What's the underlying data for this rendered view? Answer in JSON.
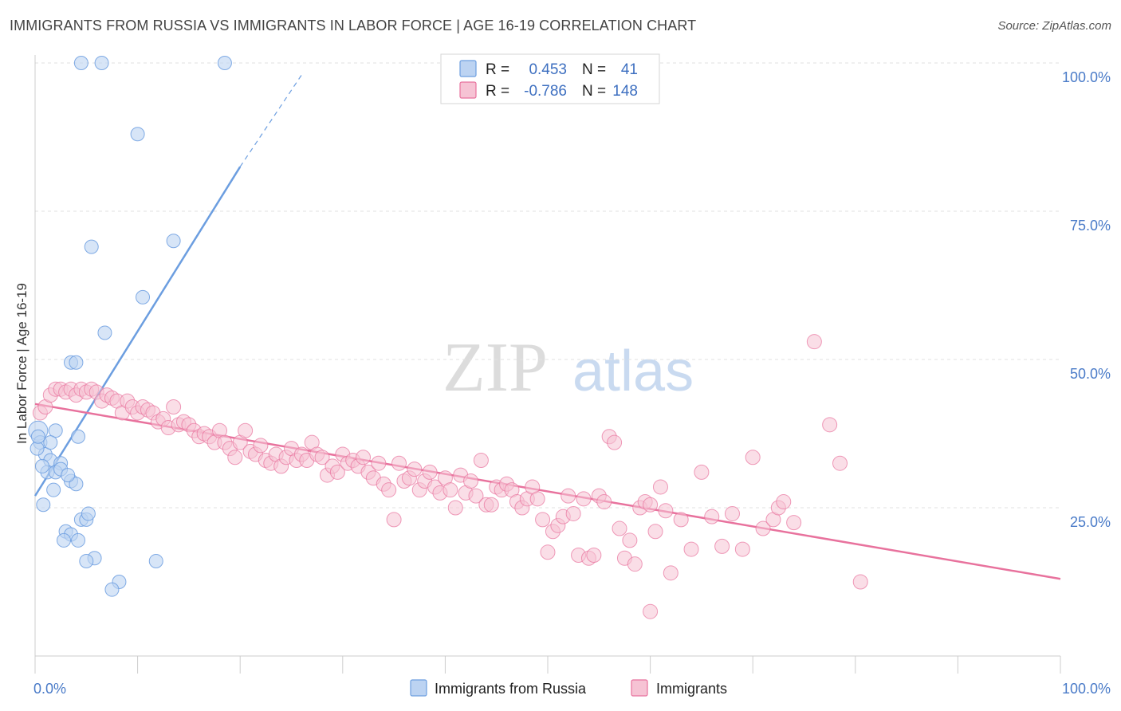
{
  "title": "IMMIGRANTS FROM RUSSIA VS IMMIGRANTS IN LABOR FORCE | AGE 16-19 CORRELATION CHART",
  "source": "Source: ZipAtlas.com",
  "watermark": {
    "zip": "ZIP",
    "atlas": "atlas"
  },
  "colors": {
    "blue": "#6c9ee0",
    "blue_fill": "#bcd3f2",
    "pink": "#e8729d",
    "pink_fill": "#f6c3d4",
    "tick": "#4a7bc8"
  },
  "legend": {
    "r_label": "R =",
    "n_label": "N =",
    "rows": [
      {
        "r": "0.453",
        "n": "41"
      },
      {
        "r": "-0.786",
        "n": "148"
      }
    ]
  },
  "chart_data": {
    "type": "scatter",
    "xlabel": "",
    "ylabel": "In Labor Force | Age 16-19",
    "xlim": [
      0,
      100
    ],
    "ylim": [
      0,
      100
    ],
    "x_tick_labels": [
      "0.0%",
      "100.0%"
    ],
    "y_ticks": [
      25,
      50,
      75,
      100
    ],
    "y_tick_labels": [
      "25.0%",
      "50.0%",
      "75.0%",
      "100.0%"
    ],
    "grid": true,
    "legend_position": "top-center",
    "series": [
      {
        "name": "Immigrants from Russia",
        "trend": {
          "x0": 0,
          "y0": 27,
          "x1": 20,
          "y1": 82.5,
          "x_dash_end": 26,
          "y_dash_end": 98
        },
        "points": [
          [
            4.5,
            100
          ],
          [
            6.5,
            100
          ],
          [
            18.5,
            100
          ],
          [
            10,
            88
          ],
          [
            5.5,
            69
          ],
          [
            13.5,
            70
          ],
          [
            10.5,
            60.5
          ],
          [
            6.8,
            54.5
          ],
          [
            3.5,
            49.5
          ],
          [
            4,
            49.5
          ],
          [
            0.3,
            38
          ],
          [
            0.5,
            36
          ],
          [
            1,
            34
          ],
          [
            2,
            38
          ],
          [
            1.5,
            33
          ],
          [
            2.5,
            32.5
          ],
          [
            1.2,
            31
          ],
          [
            2,
            31
          ],
          [
            2.5,
            31.5
          ],
          [
            3.5,
            29.5
          ],
          [
            4,
            29
          ],
          [
            1.8,
            28
          ],
          [
            4.2,
            37
          ],
          [
            0.8,
            25.5
          ],
          [
            4.5,
            23
          ],
          [
            5,
            23
          ],
          [
            5.2,
            24
          ],
          [
            3,
            21
          ],
          [
            3.5,
            20.5
          ],
          [
            4.2,
            19.5
          ],
          [
            2.8,
            19.5
          ],
          [
            5.8,
            16.5
          ],
          [
            5,
            16
          ],
          [
            11.8,
            16
          ],
          [
            8.2,
            12.5
          ],
          [
            7.5,
            11.2
          ],
          [
            0.2,
            35
          ],
          [
            0.3,
            37
          ],
          [
            1.5,
            36
          ],
          [
            3.2,
            30.5
          ],
          [
            0.7,
            32
          ]
        ]
      },
      {
        "name": "Immigrants",
        "trend": {
          "x0": 0,
          "y0": 42.5,
          "x1": 100,
          "y1": 13
        },
        "points": [
          [
            0.5,
            41
          ],
          [
            1,
            42
          ],
          [
            1.5,
            44
          ],
          [
            2,
            45
          ],
          [
            2.5,
            45
          ],
          [
            3,
            44.5
          ],
          [
            3.5,
            45
          ],
          [
            4,
            44
          ],
          [
            4.5,
            45
          ],
          [
            5,
            44.5
          ],
          [
            5.5,
            45
          ],
          [
            6,
            44.5
          ],
          [
            6.5,
            43
          ],
          [
            7,
            44
          ],
          [
            7.5,
            43.5
          ],
          [
            8,
            43
          ],
          [
            8.5,
            41
          ],
          [
            9,
            43
          ],
          [
            9.5,
            42
          ],
          [
            10,
            41
          ],
          [
            10.5,
            42
          ],
          [
            11,
            41.5
          ],
          [
            11.5,
            41
          ],
          [
            12,
            39.5
          ],
          [
            12.5,
            40
          ],
          [
            13,
            38.5
          ],
          [
            13.5,
            42
          ],
          [
            14,
            39
          ],
          [
            14.5,
            39.5
          ],
          [
            15,
            39
          ],
          [
            15.5,
            38
          ],
          [
            16,
            37
          ],
          [
            16.5,
            37.5
          ],
          [
            17,
            37
          ],
          [
            17.5,
            36
          ],
          [
            18,
            38
          ],
          [
            18.5,
            36
          ],
          [
            19,
            35
          ],
          [
            19.5,
            33.5
          ],
          [
            20,
            36
          ],
          [
            20.5,
            38
          ],
          [
            21,
            34.5
          ],
          [
            21.5,
            34
          ],
          [
            22,
            35.5
          ],
          [
            22.5,
            33
          ],
          [
            23,
            32.5
          ],
          [
            23.5,
            34
          ],
          [
            24,
            32
          ],
          [
            24.5,
            33.5
          ],
          [
            25,
            35
          ],
          [
            25.5,
            33
          ],
          [
            26,
            34
          ],
          [
            26.5,
            33
          ],
          [
            27,
            36
          ],
          [
            27.5,
            34
          ],
          [
            28,
            33.5
          ],
          [
            28.5,
            30.5
          ],
          [
            29,
            32
          ],
          [
            29.5,
            31
          ],
          [
            30,
            34
          ],
          [
            30.5,
            32.5
          ],
          [
            31,
            33
          ],
          [
            31.5,
            32
          ],
          [
            32,
            33.5
          ],
          [
            32.5,
            31
          ],
          [
            33,
            30
          ],
          [
            33.5,
            32.5
          ],
          [
            34,
            29
          ],
          [
            34.5,
            28
          ],
          [
            35,
            23
          ],
          [
            35.5,
            32.5
          ],
          [
            36,
            29.5
          ],
          [
            36.5,
            30
          ],
          [
            37,
            31.5
          ],
          [
            37.5,
            28
          ],
          [
            38,
            29.5
          ],
          [
            38.5,
            31
          ],
          [
            39,
            28.5
          ],
          [
            39.5,
            27.5
          ],
          [
            40,
            30
          ],
          [
            40.5,
            28
          ],
          [
            41,
            25
          ],
          [
            41.5,
            30.5
          ],
          [
            42,
            27.5
          ],
          [
            42.5,
            29.5
          ],
          [
            43,
            27
          ],
          [
            43.5,
            33
          ],
          [
            44,
            25.5
          ],
          [
            44.5,
            25.5
          ],
          [
            45,
            28.5
          ],
          [
            45.5,
            28
          ],
          [
            46,
            29
          ],
          [
            46.5,
            28
          ],
          [
            47,
            26
          ],
          [
            47.5,
            25
          ],
          [
            48,
            26.5
          ],
          [
            48.5,
            28.5
          ],
          [
            49,
            26.5
          ],
          [
            49.5,
            23
          ],
          [
            50,
            17.5
          ],
          [
            50.5,
            21
          ],
          [
            51,
            22
          ],
          [
            51.5,
            23.5
          ],
          [
            52,
            27
          ],
          [
            52.5,
            24
          ],
          [
            53,
            17
          ],
          [
            53.5,
            26.5
          ],
          [
            54,
            16.5
          ],
          [
            54.5,
            17
          ],
          [
            55,
            27
          ],
          [
            55.5,
            26
          ],
          [
            56,
            37
          ],
          [
            56.5,
            36
          ],
          [
            57,
            21.5
          ],
          [
            57.5,
            16.5
          ],
          [
            58,
            19.5
          ],
          [
            58.5,
            15.5
          ],
          [
            59,
            25
          ],
          [
            59.5,
            26
          ],
          [
            60,
            25.5
          ],
          [
            60.5,
            21
          ],
          [
            61,
            28.5
          ],
          [
            61.5,
            24.5
          ],
          [
            62,
            14
          ],
          [
            63,
            23
          ],
          [
            64,
            18
          ],
          [
            65,
            31
          ],
          [
            66,
            23.5
          ],
          [
            67,
            18.5
          ],
          [
            68,
            24
          ],
          [
            69,
            18
          ],
          [
            70,
            33.5
          ],
          [
            71,
            21.5
          ],
          [
            72,
            23
          ],
          [
            72.5,
            25
          ],
          [
            73,
            26
          ],
          [
            74,
            22.5
          ],
          [
            76,
            53
          ],
          [
            77.5,
            39
          ],
          [
            78.5,
            32.5
          ],
          [
            80.5,
            12.5
          ],
          [
            60,
            7.5
          ]
        ]
      }
    ]
  }
}
